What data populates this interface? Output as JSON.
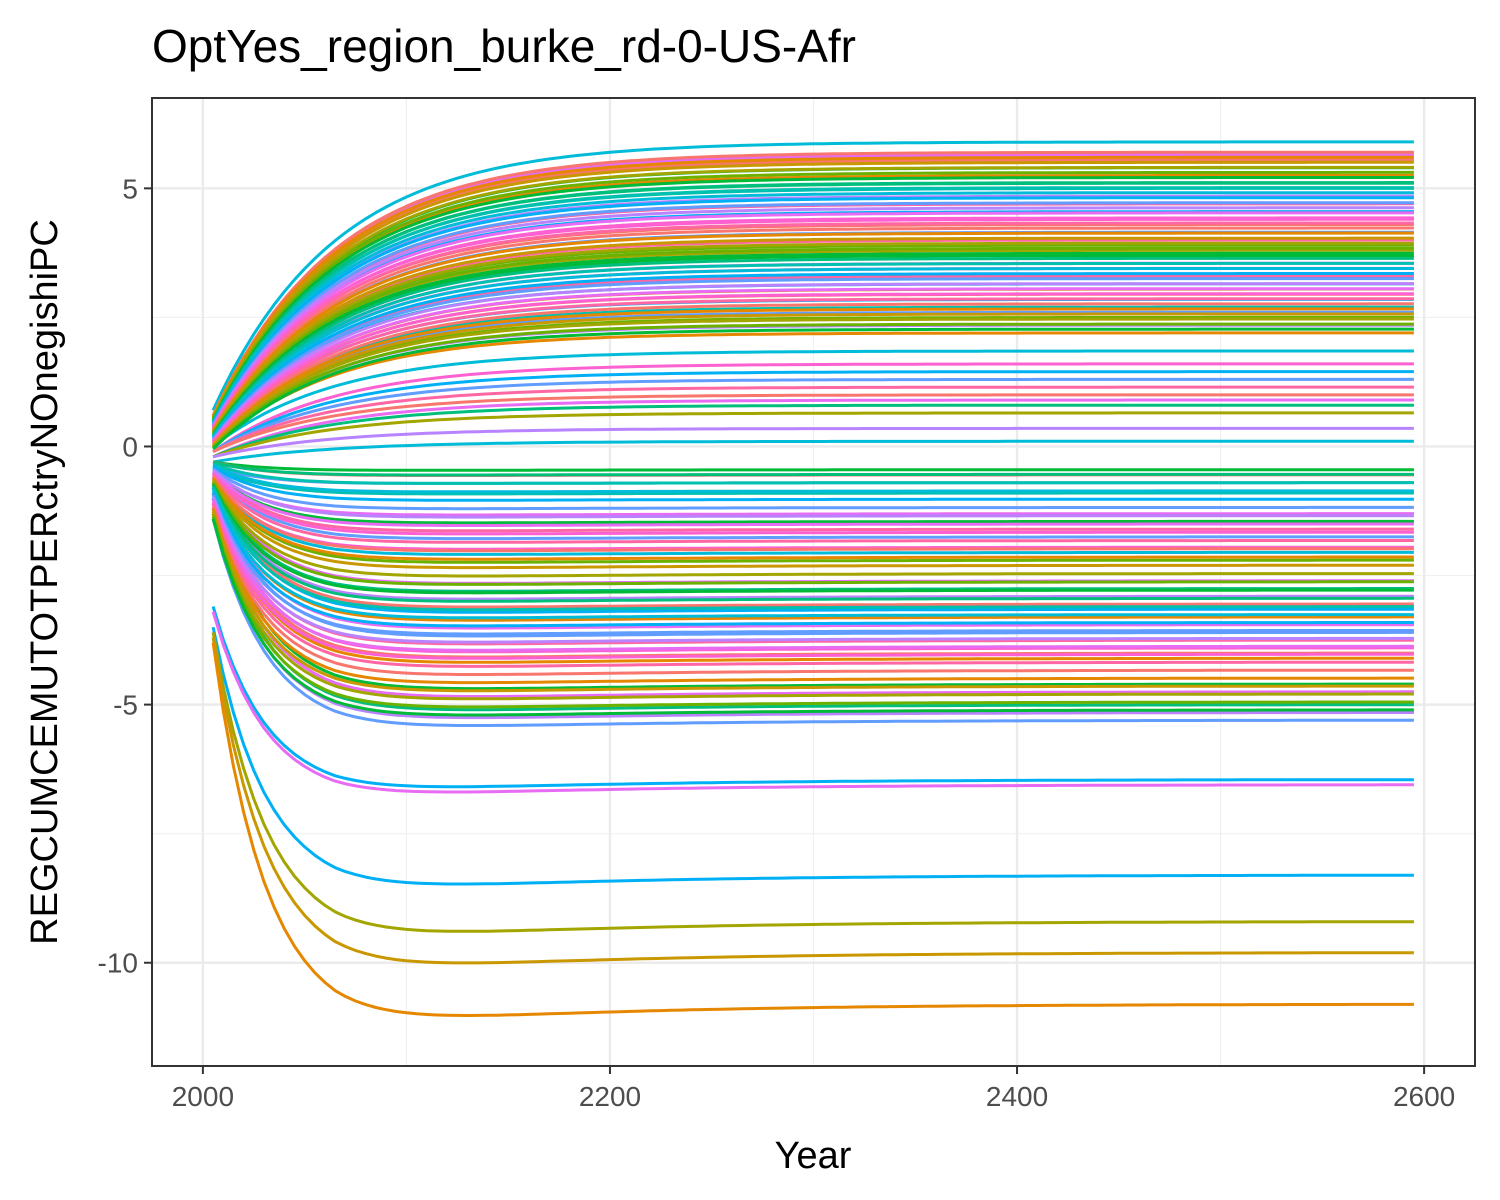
{
  "chart_data": {
    "type": "line",
    "title": "OptYes_region_burke_rd-0-US-Afr",
    "xlabel": "Year",
    "ylabel": "REGCUMCEMUTOTPERctryNOnegishiPC",
    "xlim": [
      1975,
      2625
    ],
    "ylim": [
      -12.0,
      6.75
    ],
    "x_ticks": [
      2000,
      2200,
      2400,
      2600
    ],
    "y_ticks": [
      -10,
      -5,
      0,
      5
    ],
    "x_tick_labels": [
      "2000",
      "2200",
      "2400",
      "2600"
    ],
    "y_tick_labels": [
      "-10",
      "-5",
      "0",
      "5"
    ],
    "grid": true,
    "legend": "none",
    "x_range": [
      2005,
      2595
    ],
    "series_count": 140,
    "series_colors": [
      "#F8766D",
      "#E58700",
      "#C99800",
      "#A3A500",
      "#6BB100",
      "#00BA38",
      "#00BF7D",
      "#00C0AF",
      "#00BCD8",
      "#00B0F6",
      "#619CFF",
      "#B983FF",
      "#E76BF3",
      "#FD61D1",
      "#FF67A4"
    ],
    "series": [
      {
        "start": 0.7,
        "final": 5.9,
        "color": "#00BCD8"
      },
      {
        "start": 0.6,
        "final": 5.65,
        "color": "#E76BF3"
      },
      {
        "start": 0.6,
        "final": 5.55,
        "color": "#F8766D"
      },
      {
        "start": 0.5,
        "final": 5.4,
        "color": "#00BA38"
      },
      {
        "start": 0.5,
        "final": 5.25,
        "color": "#E58700"
      },
      {
        "start": 0.5,
        "final": 5.1,
        "color": "#00BF7D"
      },
      {
        "start": 0.5,
        "final": 5.0,
        "color": "#00C0AF"
      },
      {
        "start": 0.4,
        "final": 4.85,
        "color": "#B983FF"
      },
      {
        "start": 0.4,
        "final": 4.7,
        "color": "#FF67A4"
      },
      {
        "start": 0.4,
        "final": 4.55,
        "color": "#00B0F6"
      },
      {
        "start": 0.4,
        "final": 4.4,
        "color": "#FD61D1"
      },
      {
        "start": 0.4,
        "final": 4.3,
        "color": "#F8766D"
      },
      {
        "start": 0.3,
        "final": 4.15,
        "color": "#619CFF"
      },
      {
        "start": 0.3,
        "final": 4.0,
        "color": "#FF67A4"
      },
      {
        "start": 0.3,
        "final": 3.9,
        "color": "#6BB100"
      },
      {
        "start": 0.3,
        "final": 3.8,
        "color": "#A3A500"
      },
      {
        "start": 0.2,
        "final": 3.7,
        "color": "#00BA38"
      },
      {
        "start": 0.2,
        "final": 3.55,
        "color": "#E76BF3"
      },
      {
        "start": 0.2,
        "final": 3.45,
        "color": "#FD61D1"
      },
      {
        "start": 0.2,
        "final": 3.3,
        "color": "#FF67A4"
      },
      {
        "start": 0.2,
        "final": 3.15,
        "color": "#00BCD8"
      },
      {
        "start": 0.1,
        "final": 3.05,
        "color": "#E58700"
      },
      {
        "start": 0.1,
        "final": 2.95,
        "color": "#F8766D"
      },
      {
        "start": 0.1,
        "final": 2.85,
        "color": "#00B0F6"
      },
      {
        "start": 0.1,
        "final": 2.7,
        "color": "#00C0AF"
      },
      {
        "start": 0.1,
        "final": 2.6,
        "color": "#619CFF"
      },
      {
        "start": 0.0,
        "final": 2.5,
        "color": "#6BB100"
      },
      {
        "start": 0.0,
        "final": 2.35,
        "color": "#B983FF"
      },
      {
        "start": 0.0,
        "final": 2.2,
        "color": "#E58700"
      },
      {
        "start": 0.0,
        "final": 1.85,
        "color": "#00BCD8"
      },
      {
        "start": -0.1,
        "final": 1.6,
        "color": "#FD61D1"
      },
      {
        "start": -0.1,
        "final": 1.45,
        "color": "#00B0F6"
      },
      {
        "start": -0.1,
        "final": 1.3,
        "color": "#619CFF"
      },
      {
        "start": -0.1,
        "final": 1.15,
        "color": "#FF67A4"
      },
      {
        "start": -0.1,
        "final": 1.0,
        "color": "#F8766D"
      },
      {
        "start": -0.2,
        "final": 0.9,
        "color": "#E76BF3"
      },
      {
        "start": -0.2,
        "final": 0.8,
        "color": "#00BF7D"
      },
      {
        "start": -0.2,
        "final": 0.65,
        "color": "#A3A500"
      },
      {
        "start": -0.2,
        "final": 0.35,
        "color": "#B983FF"
      },
      {
        "start": -0.3,
        "final": 0.1,
        "color": "#00BCD8"
      },
      {
        "start": -0.3,
        "final": -0.45,
        "color": "#00BA38"
      },
      {
        "start": -0.3,
        "final": -0.55,
        "color": "#F8766D"
      },
      {
        "start": -0.4,
        "final": -0.7,
        "color": "#619CFF"
      },
      {
        "start": -0.4,
        "final": -0.9,
        "color": "#00C0AF"
      },
      {
        "start": -0.5,
        "final": -1.3,
        "color": "#E76BF3"
      },
      {
        "start": -0.5,
        "final": -1.45,
        "color": "#00BA38"
      },
      {
        "start": -0.5,
        "final": -1.6,
        "color": "#FF67A4"
      },
      {
        "start": -0.5,
        "final": -1.75,
        "color": "#619CFF"
      },
      {
        "start": -0.6,
        "final": -1.95,
        "color": "#FD61D1"
      },
      {
        "start": -0.6,
        "final": -2.05,
        "color": "#00BCD8"
      },
      {
        "start": -0.6,
        "final": -2.2,
        "color": "#6BB100"
      },
      {
        "start": -0.6,
        "final": -2.6,
        "color": "#E76BF3"
      },
      {
        "start": -0.7,
        "final": -2.75,
        "color": "#00BF7D"
      },
      {
        "start": -0.7,
        "final": -2.9,
        "color": "#B983FF"
      },
      {
        "start": -0.7,
        "final": -3.05,
        "color": "#F8766D"
      },
      {
        "start": -0.7,
        "final": -3.15,
        "color": "#00B0F6"
      },
      {
        "start": -0.8,
        "final": -3.3,
        "color": "#E58700"
      },
      {
        "start": -0.8,
        "final": -3.45,
        "color": "#E76BF3"
      },
      {
        "start": -0.8,
        "final": -3.6,
        "color": "#619CFF"
      },
      {
        "start": -0.9,
        "final": -3.75,
        "color": "#FF67A4"
      },
      {
        "start": -0.9,
        "final": -3.9,
        "color": "#FD61D1"
      },
      {
        "start": -0.9,
        "final": -4.0,
        "color": "#F8766D"
      },
      {
        "start": -1.0,
        "final": -4.1,
        "color": "#E58700"
      },
      {
        "start": -1.0,
        "final": -4.6,
        "color": "#00BA38"
      },
      {
        "start": -1.1,
        "final": -4.75,
        "color": "#E76BF3"
      },
      {
        "start": -1.2,
        "final": -5.0,
        "color": "#00BF7D"
      },
      {
        "start": -1.3,
        "final": -5.15,
        "color": "#B983FF"
      },
      {
        "start": -1.4,
        "final": -5.3,
        "color": "#619CFF"
      },
      {
        "start": -3.1,
        "final": -6.45,
        "color": "#00B0F6"
      },
      {
        "start": -3.2,
        "final": -6.55,
        "color": "#E76BF3"
      },
      {
        "start": -3.5,
        "final": -8.3,
        "color": "#00B0F6"
      },
      {
        "start": -3.6,
        "final": -9.2,
        "color": "#A3A500"
      },
      {
        "start": -3.7,
        "final": -9.8,
        "color": "#C99800"
      },
      {
        "start": -3.8,
        "final": -10.8,
        "color": "#E58700"
      }
    ]
  }
}
